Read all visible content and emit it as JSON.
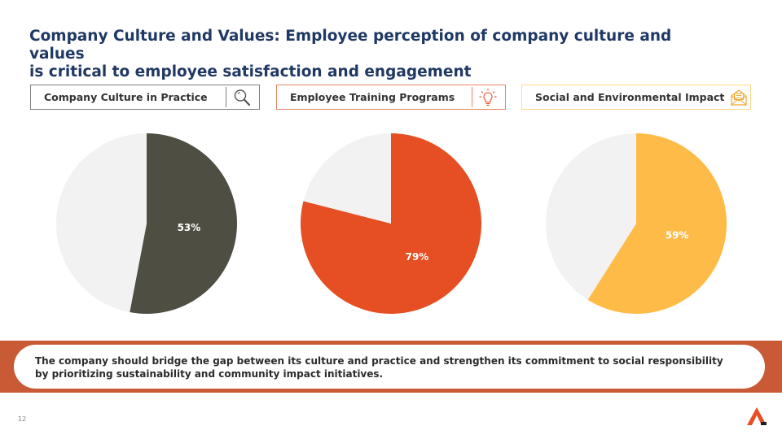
{
  "title": {
    "line1": "Company Culture and Values: Employee perception of company culture and values",
    "line2": "is critical to employee satisfaction and engagement"
  },
  "categories": [
    {
      "label": "Company Culture in Practice",
      "icon": "magnifier-icon",
      "border_color": "#7f7f7f"
    },
    {
      "label": "Employee Training Programs",
      "icon": "lightbulb-icon",
      "border_color": "#e8896a"
    },
    {
      "label": "Social and Environmental Impact",
      "icon": "envelope-icon",
      "border_color": "#ffd98a"
    }
  ],
  "chart_data": [
    {
      "type": "pie",
      "slices": [
        {
          "label": "53%",
          "value": 53,
          "color": "#4f4e42"
        },
        {
          "value": 47,
          "color": "#f2f2f2"
        }
      ]
    },
    {
      "type": "pie",
      "slices": [
        {
          "label": "79%",
          "value": 79,
          "color": "#e64e23"
        },
        {
          "value": 21,
          "color": "#f2f2f2"
        }
      ]
    },
    {
      "type": "pie",
      "slices": [
        {
          "label": "59%",
          "value": 59,
          "color": "#ffbb47"
        },
        {
          "value": 41,
          "color": "#f2f2f2"
        }
      ]
    }
  ],
  "conclusion": {
    "line1": "The company should bridge the gap between its culture and practice and strengthen its commitment to social responsibility",
    "line2": "by prioritizing sustainability and community impact initiatives."
  },
  "page_number": "12",
  "colors": {
    "title": "#1f3864",
    "banner": "#c85a35",
    "logo": "#e64e23"
  }
}
